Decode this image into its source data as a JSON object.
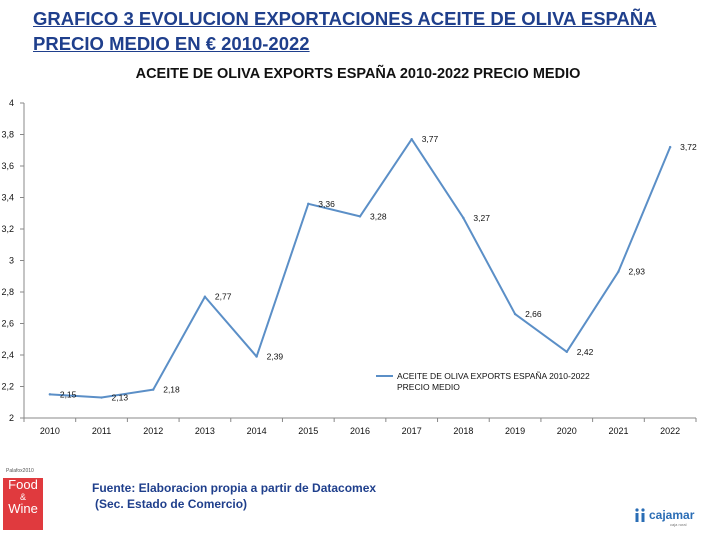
{
  "slide_title": "GRAFICO 3 EVOLUCION EXPORTACIONES ACEITE DE OLIVA ESPAÑA PRECIO MEDIO EN €  2010-2022",
  "colors": {
    "title": "#1f3f8c",
    "series": "#5b8fc7",
    "axis": "#888888"
  },
  "chart_data": {
    "type": "line",
    "title": "ACEITE DE OLIVA EXPORTS ESPAÑA 2010-2022 PRECIO MEDIO",
    "xlabel": "",
    "ylabel": "",
    "categories": [
      "2010",
      "2011",
      "2012",
      "2013",
      "2014",
      "2015",
      "2016",
      "2017",
      "2018",
      "2019",
      "2020",
      "2021",
      "2022"
    ],
    "series": [
      {
        "name": "ACEITE DE OLIVA EXPORTS ESPAÑA 2010-2022 PRECIO MEDIO",
        "values": [
          2.15,
          2.13,
          2.18,
          2.77,
          2.39,
          3.36,
          3.28,
          3.77,
          3.27,
          2.66,
          2.42,
          2.93,
          3.72
        ],
        "labels": [
          "2,15",
          "2,13",
          "2,18",
          "2,77",
          "2,39",
          "3,36",
          "3,28",
          "3,77",
          "3,27",
          "2,66",
          "2,42",
          "2,93",
          "3,72"
        ]
      }
    ],
    "ylim": [
      2,
      4
    ],
    "yticks": [
      2,
      2.2,
      2.4,
      2.6,
      2.8,
      3,
      3.2,
      3.4,
      3.6,
      3.8,
      4
    ],
    "ytick_labels": [
      "2",
      "2,2",
      "2,4",
      "2,6",
      "2,8",
      "3",
      "3,2",
      "3,4",
      "3,6",
      "3,8",
      "4"
    ],
    "grid": false,
    "legend": {
      "position": "inside-lower-right",
      "lines": [
        "ACEITE DE OLIVA EXPORTS ESPAÑA 2010-2022",
        "PRECIO MEDIO"
      ]
    }
  },
  "source": {
    "line1": "Fuente: Elaboracion propia a partir de Datacomex",
    "line2": "(Sec. Estado de Comercio)"
  },
  "logos": {
    "left": {
      "tag": "Palafox2010",
      "word1": "Food",
      "amp": "&",
      "word2": "Wine"
    },
    "right": {
      "name": "cajamar",
      "sub": "caja rural"
    }
  }
}
